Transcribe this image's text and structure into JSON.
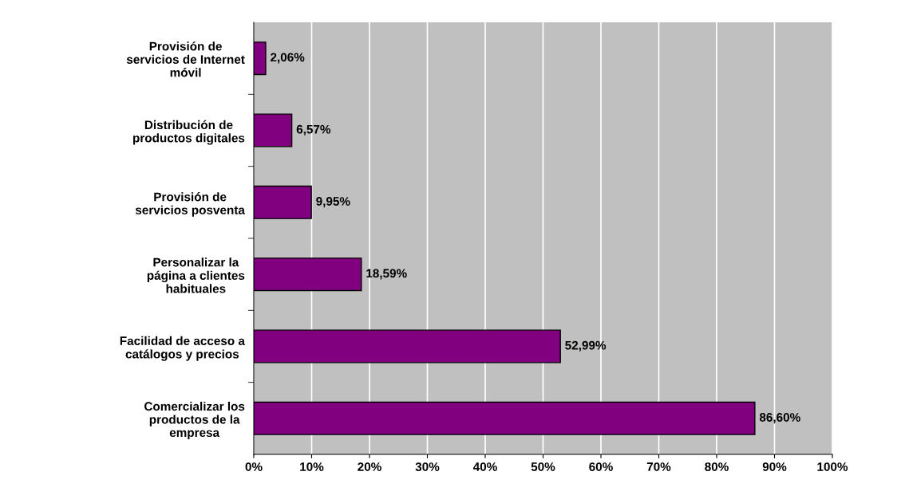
{
  "chart_data": {
    "type": "bar",
    "orientation": "horizontal",
    "categories": [
      "Provisión de\nservicios de Internet\nmóvil",
      "Distribución de\nproductos digitales",
      "Provisión de\nservicios posventa",
      "Personalizar la\npágina a clientes\nhabituales",
      "Facilidad de acceso a\ncatálogos y precios",
      "Comercializar los\nproductos de la\nempresa"
    ],
    "values": [
      2.06,
      6.57,
      9.95,
      18.59,
      52.99,
      86.6
    ],
    "value_labels": [
      "2,06%",
      "6,57%",
      "9,95%",
      "18,59%",
      "52,99%",
      "86,60%"
    ],
    "color": "#800080",
    "xlim": [
      0,
      100
    ],
    "xticks": [
      {
        "value": 0,
        "label": "0%"
      },
      {
        "value": 10,
        "label": "10%"
      },
      {
        "value": 20,
        "label": "20%"
      },
      {
        "value": 30,
        "label": "30%"
      },
      {
        "value": 40,
        "label": "40%"
      },
      {
        "value": 50,
        "label": "50%"
      },
      {
        "value": 60,
        "label": "60%"
      },
      {
        "value": 70,
        "label": "70%"
      },
      {
        "value": 80,
        "label": "80%"
      },
      {
        "value": 90,
        "label": "90%"
      },
      {
        "value": 100,
        "label": "100%"
      }
    ],
    "grid": "x",
    "legend": false
  }
}
